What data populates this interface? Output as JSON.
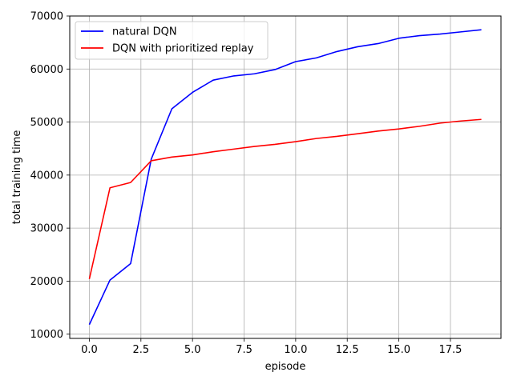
{
  "chart_data": {
    "type": "line",
    "title": "",
    "xlabel": "episode",
    "ylabel": "total training time",
    "xlim": [
      -0.95,
      19.95
    ],
    "ylim": [
      9200,
      70000
    ],
    "xticks": [
      0.0,
      2.5,
      5.0,
      7.5,
      10.0,
      12.5,
      15.0,
      17.5
    ],
    "xtick_labels": [
      "0.0",
      "2.5",
      "5.0",
      "7.5",
      "10.0",
      "12.5",
      "15.0",
      "17.5"
    ],
    "yticks": [
      10000,
      20000,
      30000,
      40000,
      50000,
      60000,
      70000
    ],
    "ytick_labels": [
      "10000",
      "20000",
      "30000",
      "40000",
      "50000",
      "60000",
      "70000"
    ],
    "grid": true,
    "legend_position": "top-left",
    "x": [
      0,
      1,
      2,
      3,
      4,
      5,
      6,
      7,
      8,
      9,
      10,
      11,
      12,
      13,
      14,
      15,
      16,
      17,
      18,
      19
    ],
    "series": [
      {
        "name": "natural DQN",
        "color": "#0000ff",
        "values": [
          11800,
          20200,
          23300,
          43000,
          52500,
          55600,
          57900,
          58700,
          59100,
          59900,
          61400,
          62100,
          63300,
          64200,
          64800,
          65800,
          66300,
          66600,
          67000,
          67400
        ]
      },
      {
        "name": "DQN with prioritized replay",
        "color": "#ff0000",
        "values": [
          20400,
          37600,
          38600,
          42700,
          43400,
          43800,
          44400,
          44900,
          45400,
          45800,
          46300,
          46900,
          47300,
          47800,
          48300,
          48700,
          49200,
          49800,
          50200,
          50500
        ]
      }
    ]
  }
}
